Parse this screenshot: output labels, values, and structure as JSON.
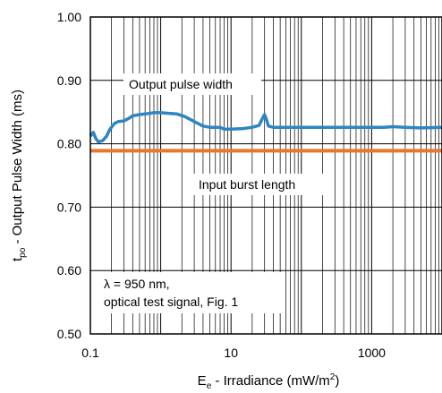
{
  "chart_data": {
    "type": "line",
    "x_scale": "log",
    "xlim": [
      0.1,
      10000
    ],
    "ylim": [
      0.5,
      1.0
    ],
    "grid": true,
    "xlabel": {
      "main": "E",
      "sub": "e",
      "rest": " - Irradiance (mW/m",
      "sup": "2",
      "end": ")"
    },
    "ylabel": {
      "main": "t",
      "sub": "po",
      "rest": " - Output Pulse Width (ms)"
    },
    "x_tick_labels": [
      {
        "value": 0.1,
        "label": "0.1"
      },
      {
        "value": 10,
        "label": "10"
      },
      {
        "value": 1000,
        "label": "1000"
      }
    ],
    "y_tick_labels": [
      {
        "value": 0.5,
        "label": "0.50"
      },
      {
        "value": 0.6,
        "label": "0.60"
      },
      {
        "value": 0.7,
        "label": "0.70"
      },
      {
        "value": 0.8,
        "label": "0.80"
      },
      {
        "value": 0.9,
        "label": "0.90"
      },
      {
        "value": 1.0,
        "label": "1.00"
      }
    ],
    "series": [
      {
        "name": "Output pulse width",
        "color": "#2e86c1",
        "x": [
          0.1,
          0.11,
          0.12,
          0.13,
          0.15,
          0.17,
          0.19,
          0.22,
          0.25,
          0.3,
          0.35,
          0.4,
          0.5,
          0.6,
          0.7,
          0.8,
          1.0,
          1.3,
          1.7,
          2.2,
          3,
          4,
          5,
          6,
          6.5,
          7,
          8,
          10,
          15,
          20,
          25,
          28,
          30,
          32,
          34,
          40,
          60,
          100,
          200,
          500,
          1000,
          1500,
          2000,
          3000,
          5000,
          10000
        ],
        "y": [
          0.812,
          0.818,
          0.808,
          0.803,
          0.805,
          0.812,
          0.823,
          0.832,
          0.835,
          0.836,
          0.84,
          0.844,
          0.846,
          0.847,
          0.848,
          0.849,
          0.849,
          0.848,
          0.847,
          0.843,
          0.835,
          0.828,
          0.826,
          0.826,
          0.826,
          0.826,
          0.823,
          0.823,
          0.824,
          0.826,
          0.829,
          0.84,
          0.846,
          0.838,
          0.828,
          0.826,
          0.826,
          0.826,
          0.826,
          0.826,
          0.826,
          0.826,
          0.827,
          0.826,
          0.825,
          0.826
        ]
      },
      {
        "name": "Input burst length",
        "color": "#e8762d",
        "x": [
          0.1,
          10000
        ],
        "y": [
          0.789,
          0.789
        ]
      }
    ],
    "annotations": [
      {
        "id": "output",
        "text": "Output pulse width"
      },
      {
        "id": "input",
        "text": "Input burst length"
      },
      {
        "id": "cond1",
        "text": "λ = 950 nm,"
      },
      {
        "id": "cond2",
        "text": "optical test signal, Fig. 1"
      }
    ]
  }
}
